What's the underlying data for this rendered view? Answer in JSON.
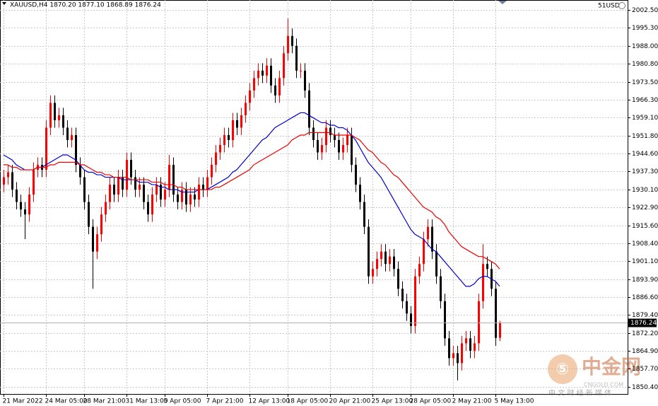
{
  "chart_data": {
    "type": "candlestick",
    "title": "XAUUSD,H4  1870.20 1877.10 1868.89 1876.24",
    "account": "51USD",
    "up_color": "#ff0000",
    "down_color": "#000000",
    "categories": [
      "21 Mar 2022",
      null,
      null,
      null,
      null,
      null,
      null,
      null,
      null,
      null,
      "24 Mar 05:00",
      null,
      null,
      null,
      null,
      null,
      null,
      null,
      null,
      "28 Mar 21:00",
      null,
      null,
      null,
      null,
      null,
      null,
      null,
      null,
      null,
      "31 Mar 13:00",
      null,
      null,
      null,
      null,
      null,
      null,
      null,
      null,
      "5 Apr 05:00",
      null,
      null,
      null,
      null,
      null,
      null,
      null,
      null,
      null,
      "7 Apr 21:00",
      null,
      null,
      null,
      null,
      null,
      null,
      null,
      null,
      null,
      "12 Apr 13:00",
      null,
      null,
      null,
      null,
      null,
      null,
      null,
      null,
      "18 Apr 05:00",
      null,
      null,
      null,
      null,
      null,
      null,
      null,
      null,
      null,
      "20 Apr 21:00",
      null,
      null,
      null,
      null,
      null,
      null,
      null,
      null,
      null,
      "25 Apr 13:00",
      null,
      null,
      null,
      null,
      null,
      null,
      null,
      null,
      "28 Apr 05:00",
      null,
      null,
      null,
      null,
      null,
      null,
      null,
      null,
      null,
      "2 May 21:00",
      null,
      null,
      null,
      null,
      null,
      null,
      null,
      null,
      null,
      "5 May 13:00",
      null
    ],
    "open": [
      1932,
      1935,
      1937,
      1930,
      1925,
      1922,
      1920,
      1928,
      1938,
      1940,
      1938,
      1955,
      1965,
      1958,
      1960,
      1955,
      1950,
      1952,
      1940,
      1935,
      1925,
      1915,
      1905,
      1912,
      1920,
      1925,
      1932,
      1928,
      1935,
      1930,
      1942,
      1935,
      1930,
      1932,
      1925,
      1920,
      1928,
      1932,
      1926,
      1930,
      1940,
      1928,
      1925,
      1930,
      1924,
      1928,
      1926,
      1932,
      1930,
      1935,
      1940,
      1945,
      1948,
      1952,
      1950,
      1958,
      1955,
      1960,
      1965,
      1970,
      1975,
      1978,
      1976,
      1980,
      1972,
      1968,
      1975,
      1985,
      1992,
      1988,
      1978,
      1978,
      1970,
      1955,
      1950,
      1945,
      1948,
      1955,
      1952,
      1950,
      1945,
      1948,
      1952,
      1940,
      1932,
      1925,
      1915,
      1895,
      1898,
      1902,
      1905,
      1900,
      1903,
      1898,
      1890,
      1885,
      1880,
      1875,
      1895,
      1900,
      1910,
      1915,
      1905,
      1895,
      1885,
      1870,
      1862,
      1864,
      1860,
      1868,
      1870,
      1865,
      1868,
      1885,
      1900,
      1898,
      1890,
      1870.2
    ],
    "high": [
      1938,
      1940,
      1940,
      1933,
      1928,
      1925,
      1931,
      1941,
      1943,
      1943,
      1958,
      1968,
      1968,
      1963,
      1963,
      1958,
      1955,
      1955,
      1943,
      1938,
      1928,
      1918,
      1915,
      1923,
      1928,
      1935,
      1935,
      1938,
      1938,
      1945,
      1945,
      1938,
      1935,
      1935,
      1928,
      1931,
      1935,
      1935,
      1933,
      1944,
      1943,
      1931,
      1933,
      1933,
      1931,
      1931,
      1935,
      1935,
      1938,
      1943,
      1948,
      1951,
      1955,
      1955,
      1961,
      1961,
      1963,
      1968,
      1973,
      1978,
      1981,
      1981,
      1983,
      1983,
      1975,
      1978,
      1988,
      1999,
      1995,
      1991,
      1981,
      1981,
      1973,
      1958,
      1953,
      1951,
      1958,
      1958,
      1955,
      1953,
      1951,
      1955,
      1955,
      1943,
      1935,
      1928,
      1918,
      1901,
      1905,
      1908,
      1908,
      1906,
      1906,
      1901,
      1893,
      1888,
      1883,
      1898,
      1903,
      1913,
      1918,
      1918,
      1908,
      1898,
      1888,
      1873,
      1867,
      1867,
      1871,
      1873,
      1873,
      1871,
      1888,
      1908,
      1903,
      1901,
      1893,
      1877.1
    ],
    "low": [
      1929,
      1932,
      1927,
      1922,
      1919,
      1910,
      1917,
      1925,
      1935,
      1935,
      1935,
      1952,
      1955,
      1955,
      1952,
      1947,
      1947,
      1937,
      1932,
      1922,
      1912,
      1890,
      1902,
      1909,
      1917,
      1922,
      1925,
      1925,
      1927,
      1927,
      1932,
      1927,
      1927,
      1922,
      1917,
      1917,
      1925,
      1923,
      1923,
      1927,
      1925,
      1922,
      1922,
      1921,
      1921,
      1923,
      1923,
      1927,
      1927,
      1932,
      1937,
      1942,
      1945,
      1947,
      1947,
      1952,
      1952,
      1957,
      1962,
      1967,
      1972,
      1973,
      1973,
      1969,
      1965,
      1965,
      1972,
      1982,
      1985,
      1975,
      1975,
      1967,
      1952,
      1947,
      1942,
      1942,
      1945,
      1949,
      1947,
      1942,
      1942,
      1945,
      1937,
      1929,
      1922,
      1912,
      1892,
      1892,
      1895,
      1899,
      1897,
      1897,
      1895,
      1887,
      1882,
      1877,
      1872,
      1872,
      1892,
      1897,
      1907,
      1902,
      1892,
      1882,
      1867,
      1859,
      1859,
      1853,
      1857,
      1865,
      1862,
      1862,
      1865,
      1882,
      1895,
      1887,
      1867,
      1868.89
    ],
    "close": [
      1935,
      1937,
      1930,
      1925,
      1922,
      1920,
      1928,
      1938,
      1940,
      1938,
      1955,
      1965,
      1958,
      1960,
      1955,
      1950,
      1952,
      1940,
      1935,
      1925,
      1915,
      1905,
      1912,
      1920,
      1925,
      1932,
      1928,
      1935,
      1930,
      1942,
      1935,
      1930,
      1932,
      1925,
      1920,
      1928,
      1932,
      1926,
      1930,
      1940,
      1928,
      1925,
      1930,
      1924,
      1928,
      1926,
      1932,
      1930,
      1935,
      1940,
      1945,
      1948,
      1952,
      1950,
      1958,
      1955,
      1960,
      1965,
      1970,
      1975,
      1978,
      1976,
      1980,
      1972,
      1968,
      1975,
      1985,
      1992,
      1988,
      1978,
      1978,
      1970,
      1955,
      1950,
      1945,
      1948,
      1955,
      1952,
      1950,
      1945,
      1948,
      1952,
      1940,
      1932,
      1925,
      1915,
      1895,
      1898,
      1902,
      1905,
      1900,
      1903,
      1898,
      1890,
      1885,
      1880,
      1875,
      1895,
      1900,
      1910,
      1915,
      1905,
      1895,
      1885,
      1870,
      1862,
      1864,
      1860,
      1868,
      1870,
      1865,
      1868,
      1885,
      1900,
      1898,
      1890,
      1870.2,
      1876.24
    ],
    "moving_averages": [
      {
        "color": "#0000cc",
        "values": [
          1944,
          1943,
          1942,
          1940,
          1939,
          1938,
          1938,
          1938,
          1939,
          1939,
          1940,
          1941,
          1942,
          1943,
          1944,
          1944,
          1943,
          1942,
          1940,
          1938,
          1937,
          1937,
          1936,
          1936,
          1935,
          1935,
          1935,
          1935,
          1934,
          1934,
          1934,
          1934,
          1933,
          1933,
          1933,
          1932,
          1932,
          1931,
          1931,
          1930,
          1930,
          1930,
          1929,
          1929,
          1929,
          1929,
          1930,
          1930,
          1930,
          1931,
          1932,
          1933,
          1934,
          1935,
          1937,
          1938,
          1940,
          1942,
          1944,
          1946,
          1948,
          1950,
          1951,
          1953,
          1955,
          1956,
          1957,
          1958,
          1959,
          1960,
          1961,
          1961,
          1960,
          1959,
          1958,
          1957,
          1957,
          1956,
          1956,
          1955,
          1955,
          1954,
          1952,
          1950,
          1947,
          1944,
          1941,
          1939,
          1937,
          1935,
          1932,
          1929,
          1926,
          1923,
          1920,
          1917,
          1914,
          1912,
          1911,
          1910,
          1908,
          1906,
          1905,
          1903,
          1901,
          1899,
          1897,
          1895,
          1893,
          1891,
          1891,
          1892,
          1894,
          1895,
          1895,
          1894,
          1893,
          1891
        ]
      },
      {
        "color": "#ee0000",
        "values": [
          1940,
          1940,
          1939,
          1939,
          1938,
          1938,
          1938,
          1938,
          1939,
          1939,
          1939,
          1940,
          1940,
          1941,
          1941,
          1941,
          1941,
          1941,
          1940,
          1940,
          1939,
          1938,
          1937,
          1937,
          1936,
          1936,
          1935,
          1935,
          1935,
          1935,
          1934,
          1934,
          1934,
          1934,
          1934,
          1933,
          1933,
          1933,
          1932,
          1932,
          1932,
          1931,
          1931,
          1930,
          1930,
          1930,
          1930,
          1930,
          1930,
          1930,
          1931,
          1931,
          1932,
          1933,
          1934,
          1935,
          1936,
          1937,
          1938,
          1940,
          1941,
          1942,
          1943,
          1944,
          1945,
          1946,
          1947,
          1948,
          1950,
          1951,
          1952,
          1952,
          1953,
          1953,
          1953,
          1953,
          1953,
          1953,
          1952,
          1952,
          1952,
          1952,
          1952,
          1951,
          1950,
          1948,
          1946,
          1945,
          1943,
          1941,
          1940,
          1938,
          1936,
          1935,
          1933,
          1931,
          1929,
          1927,
          1925,
          1923,
          1922,
          1921,
          1919,
          1918,
          1916,
          1913,
          1911,
          1909,
          1907,
          1906,
          1905,
          1904,
          1903,
          1903,
          1902,
          1901,
          1900,
          1898
        ]
      }
    ],
    "ylim": [
      1847.55,
      2006.5
    ],
    "yticks": [
      {
        "value": 2002.5,
        "label": "2002.50"
      },
      {
        "value": 1995.3,
        "label": "1995.30"
      },
      {
        "value": 1988,
        "label": "1988.00"
      },
      {
        "value": 1980.8,
        "label": "1980.80"
      },
      {
        "value": 1973.5,
        "label": "1973.50"
      },
      {
        "value": 1966.3,
        "label": "1966.30"
      },
      {
        "value": 1959.1,
        "label": "1959.10"
      },
      {
        "value": 1951.8,
        "label": "1951.80"
      },
      {
        "value": 1944.6,
        "label": "1944.60"
      },
      {
        "value": 1937.3,
        "label": "1937.30"
      },
      {
        "value": 1930.1,
        "label": "1930.10"
      },
      {
        "value": 1922.9,
        "label": "1922.90"
      },
      {
        "value": 1915.6,
        "label": "1915.60"
      },
      {
        "value": 1908.4,
        "label": "1908.40"
      },
      {
        "value": 1901.1,
        "label": "1901.10"
      },
      {
        "value": 1893.9,
        "label": "1893.90"
      },
      {
        "value": 1886.6,
        "label": "1886.60"
      },
      {
        "value": 1879.4,
        "label": "1879.40"
      },
      {
        "value": 1872.2,
        "label": "1872.20"
      },
      {
        "value": 1864.9,
        "label": "1864.90"
      },
      {
        "value": 1857.7,
        "label": "1857.70"
      },
      {
        "value": 1850.4,
        "label": "1850.40"
      }
    ],
    "grid": true,
    "watermark": {
      "logo": "中金网",
      "site": "CNGOLD.COM",
      "tagline": "中 文 财 经 新 媒 体"
    }
  }
}
